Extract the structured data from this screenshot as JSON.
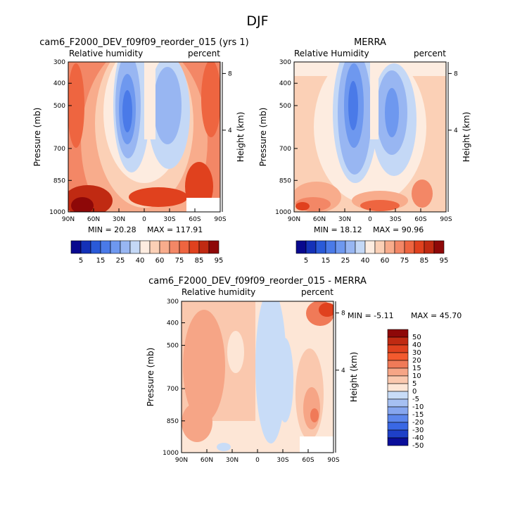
{
  "figure_title": "DJF",
  "chart_data": [
    {
      "type": "heatmap",
      "title": "cam6_F2000_DEV_f09f09_reorder_015 (yrs 1)",
      "left_label": "Relative humidity",
      "right_label": "percent",
      "xlabel": "",
      "ylabel": "Pressure (mb)",
      "ylabel_right": "Height (km)",
      "xticks": [
        "90N",
        "60N",
        "30N",
        "0",
        "30S",
        "60S",
        "90S"
      ],
      "yticks": [
        "300",
        "400",
        "500",
        "700",
        "850",
        "1000"
      ],
      "yticks_right": [
        "8",
        "4"
      ],
      "min_label": "MIN = 20.28",
      "max_label": "MAX = 117.91",
      "colorbar_labels": [
        "5",
        "15",
        "25",
        "40",
        "60",
        "75",
        "85",
        "95"
      ]
    },
    {
      "type": "heatmap",
      "title": "MERRA",
      "left_label": "Relative Humidity",
      "right_label": "percent",
      "xlabel": "",
      "ylabel": "Pressure (mb)",
      "ylabel_right": "Height (km)",
      "xticks": [
        "90N",
        "60N",
        "30N",
        "0",
        "30S",
        "60S",
        "90S"
      ],
      "yticks": [
        "300",
        "400",
        "500",
        "700",
        "850",
        "1000"
      ],
      "yticks_right": [
        "8",
        "4"
      ],
      "min_label": "MIN = 18.12",
      "max_label": "MAX = 90.96",
      "colorbar_labels": [
        "5",
        "15",
        "25",
        "40",
        "60",
        "75",
        "85",
        "95"
      ]
    },
    {
      "type": "heatmap",
      "title": "cam6_F2000_DEV_f09f09_reorder_015 - MERRA",
      "left_label": "Relative humidity",
      "right_label": "percent",
      "xlabel": "",
      "ylabel": "Pressure (mb)",
      "ylabel_right": "Height (km)",
      "xticks": [
        "90N",
        "60N",
        "30N",
        "0",
        "30S",
        "60S",
        "90S"
      ],
      "yticks": [
        "300",
        "400",
        "500",
        "700",
        "850",
        "1000"
      ],
      "yticks_right": [
        "8",
        "4"
      ],
      "min_label": "MIN = -5.11",
      "max_label": "MAX = 45.70",
      "colorbar_labels": [
        "50",
        "40",
        "30",
        "20",
        "15",
        "10",
        "5",
        "0",
        "-5",
        "-10",
        "-15",
        "-20",
        "-30",
        "-40",
        "-50"
      ]
    }
  ],
  "colors": {
    "abs_scale": [
      "#08088e",
      "#1431b8",
      "#2a5ad8",
      "#4a7ae8",
      "#6e98ef",
      "#98b6f2",
      "#c4d8f6",
      "#fdece0",
      "#fbd0b6",
      "#f8ac8c",
      "#f38766",
      "#ee6540",
      "#e0411e",
      "#c02a12",
      "#8e0808"
    ],
    "diff_scale": [
      "#8e0808",
      "#c02a12",
      "#e0411e",
      "#f35a2e",
      "#f07a58",
      "#f6a586",
      "#fac8ae",
      "#fde6d6",
      "#c8dcf7",
      "#a6c0f2",
      "#86a6ef",
      "#5c86ec",
      "#3a68e4",
      "#1e40c8",
      "#0a0e9a"
    ]
  }
}
